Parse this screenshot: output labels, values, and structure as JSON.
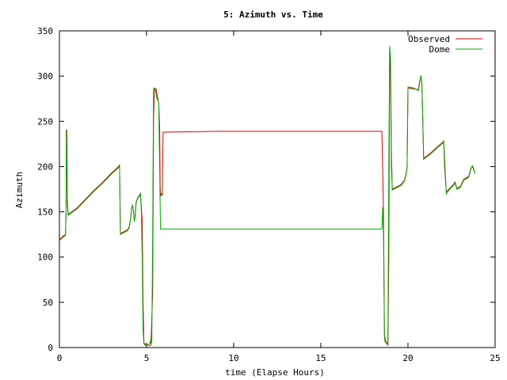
{
  "chart_data": {
    "type": "line",
    "title": "5: Azimuth vs. Time",
    "xlabel": "time (Elapse Hours)",
    "ylabel": "Azimuth",
    "xlim": [
      0,
      25
    ],
    "ylim": [
      0,
      350
    ],
    "x_ticks": [
      0,
      5,
      10,
      15,
      20,
      25
    ],
    "y_ticks": [
      0,
      50,
      100,
      150,
      200,
      250,
      300,
      350
    ],
    "grid": false,
    "legend_position": "top-right",
    "series": [
      {
        "name": "Observed",
        "color": "#cc0000",
        "points": [
          [
            0.0,
            119
          ],
          [
            0.2,
            123
          ],
          [
            0.35,
            125
          ],
          [
            0.38,
            150
          ],
          [
            0.4,
            240
          ],
          [
            0.43,
            240
          ],
          [
            0.45,
            160
          ],
          [
            0.5,
            147
          ],
          [
            0.7,
            150
          ],
          [
            1.0,
            154
          ],
          [
            1.5,
            164
          ],
          [
            2.0,
            174
          ],
          [
            2.5,
            183
          ],
          [
            3.0,
            193
          ],
          [
            3.4,
            200
          ],
          [
            3.45,
            202
          ],
          [
            3.5,
            126
          ],
          [
            3.7,
            128
          ],
          [
            3.9,
            130
          ],
          [
            4.0,
            133
          ],
          [
            4.1,
            145
          ],
          [
            4.15,
            155
          ],
          [
            4.2,
            157
          ],
          [
            4.25,
            152
          ],
          [
            4.3,
            140
          ],
          [
            4.35,
            145
          ],
          [
            4.4,
            160
          ],
          [
            4.5,
            165
          ],
          [
            4.6,
            168
          ],
          [
            4.65,
            170
          ],
          [
            4.7,
            155
          ],
          [
            4.75,
            140
          ],
          [
            4.8,
            50
          ],
          [
            4.85,
            5
          ],
          [
            4.9,
            4
          ],
          [
            5.0,
            3
          ],
          [
            5.1,
            3
          ],
          [
            5.2,
            2
          ],
          [
            5.25,
            3
          ],
          [
            5.35,
            60
          ],
          [
            5.4,
            250
          ],
          [
            5.45,
            286
          ],
          [
            5.5,
            286
          ],
          [
            5.55,
            286
          ],
          [
            5.6,
            280
          ],
          [
            5.62,
            278
          ],
          [
            5.7,
            270
          ],
          [
            5.75,
            245
          ],
          [
            5.78,
            180
          ],
          [
            5.8,
            167
          ],
          [
            5.85,
            170
          ],
          [
            5.9,
            168
          ],
          [
            5.95,
            238
          ],
          [
            6.0,
            238
          ],
          [
            9.0,
            239
          ],
          [
            12.0,
            239
          ],
          [
            15.0,
            239
          ],
          [
            18.5,
            239
          ],
          [
            18.55,
            200
          ],
          [
            18.6,
            140
          ],
          [
            18.65,
            15
          ],
          [
            18.7,
            8
          ],
          [
            18.8,
            5
          ],
          [
            18.85,
            3
          ],
          [
            18.9,
            100
          ],
          [
            18.95,
            330
          ],
          [
            19.0,
            300
          ],
          [
            19.05,
            200
          ],
          [
            19.1,
            175
          ],
          [
            19.4,
            178
          ],
          [
            19.6,
            180
          ],
          [
            19.8,
            185
          ],
          [
            19.9,
            193
          ],
          [
            19.95,
            200
          ],
          [
            20.0,
            287
          ],
          [
            20.3,
            286
          ],
          [
            20.6,
            285
          ],
          [
            20.65,
            292
          ],
          [
            20.75,
            300
          ],
          [
            20.8,
            290
          ],
          [
            20.85,
            250
          ],
          [
            20.9,
            209
          ],
          [
            21.3,
            215
          ],
          [
            21.7,
            222
          ],
          [
            22.0,
            227
          ],
          [
            22.05,
            228
          ],
          [
            22.1,
            200
          ],
          [
            22.2,
            172
          ],
          [
            22.4,
            176
          ],
          [
            22.6,
            180
          ],
          [
            22.7,
            183
          ],
          [
            22.8,
            176
          ],
          [
            23.0,
            178
          ],
          [
            23.2,
            186
          ],
          [
            23.4,
            188
          ],
          [
            23.5,
            190
          ],
          [
            23.6,
            198
          ],
          [
            23.7,
            200
          ],
          [
            23.8,
            195
          ],
          [
            23.85,
            193
          ]
        ]
      },
      {
        "name": "Dome",
        "color": "#00aa00",
        "points": [
          [
            0.0,
            118
          ],
          [
            0.2,
            122
          ],
          [
            0.35,
            124
          ],
          [
            0.38,
            148
          ],
          [
            0.4,
            210
          ],
          [
            0.43,
            241
          ],
          [
            0.45,
            170
          ],
          [
            0.5,
            146
          ],
          [
            0.7,
            149
          ],
          [
            1.0,
            153
          ],
          [
            1.5,
            163
          ],
          [
            2.0,
            173
          ],
          [
            2.5,
            182
          ],
          [
            3.0,
            192
          ],
          [
            3.4,
            199
          ],
          [
            3.45,
            201
          ],
          [
            3.5,
            125
          ],
          [
            3.7,
            127
          ],
          [
            3.9,
            129
          ],
          [
            4.0,
            132
          ],
          [
            4.1,
            144
          ],
          [
            4.15,
            154
          ],
          [
            4.2,
            158
          ],
          [
            4.25,
            151
          ],
          [
            4.3,
            139
          ],
          [
            4.35,
            146
          ],
          [
            4.4,
            161
          ],
          [
            4.5,
            166
          ],
          [
            4.6,
            169
          ],
          [
            4.65,
            170
          ],
          [
            4.7,
            150
          ],
          [
            4.75,
            100
          ],
          [
            4.8,
            20
          ],
          [
            4.85,
            4
          ],
          [
            4.9,
            3
          ],
          [
            5.0,
            2
          ],
          [
            5.1,
            3
          ],
          [
            5.2,
            5
          ],
          [
            5.25,
            10
          ],
          [
            5.3,
            5
          ],
          [
            5.35,
            120
          ],
          [
            5.4,
            286
          ],
          [
            5.45,
            287
          ],
          [
            5.5,
            285
          ],
          [
            5.55,
            280
          ],
          [
            5.6,
            275
          ],
          [
            5.62,
            276
          ],
          [
            5.7,
            270
          ],
          [
            5.75,
            200
          ],
          [
            5.8,
            131
          ],
          [
            6.0,
            131
          ],
          [
            9.0,
            131
          ],
          [
            12.0,
            131
          ],
          [
            15.0,
            131
          ],
          [
            18.5,
            131
          ],
          [
            18.55,
            155
          ],
          [
            18.6,
            120
          ],
          [
            18.65,
            10
          ],
          [
            18.7,
            6
          ],
          [
            18.8,
            4
          ],
          [
            18.85,
            2
          ],
          [
            18.9,
            200
          ],
          [
            18.95,
            333
          ],
          [
            19.0,
            320
          ],
          [
            19.05,
            220
          ],
          [
            19.1,
            174
          ],
          [
            19.4,
            177
          ],
          [
            19.6,
            179
          ],
          [
            19.8,
            184
          ],
          [
            19.9,
            192
          ],
          [
            19.95,
            199
          ],
          [
            20.0,
            288
          ],
          [
            20.3,
            287
          ],
          [
            20.6,
            284
          ],
          [
            20.65,
            290
          ],
          [
            20.75,
            301
          ],
          [
            20.8,
            292
          ],
          [
            20.85,
            255
          ],
          [
            20.9,
            208
          ],
          [
            21.3,
            214
          ],
          [
            21.7,
            221
          ],
          [
            22.0,
            226
          ],
          [
            22.05,
            229
          ],
          [
            22.1,
            210
          ],
          [
            22.2,
            170
          ],
          [
            22.4,
            175
          ],
          [
            22.6,
            179
          ],
          [
            22.7,
            182
          ],
          [
            22.8,
            175
          ],
          [
            23.0,
            177
          ],
          [
            23.2,
            185
          ],
          [
            23.4,
            187
          ],
          [
            23.5,
            189
          ],
          [
            23.6,
            197
          ],
          [
            23.7,
            201
          ],
          [
            23.8,
            196
          ],
          [
            23.85,
            192
          ]
        ]
      }
    ]
  }
}
